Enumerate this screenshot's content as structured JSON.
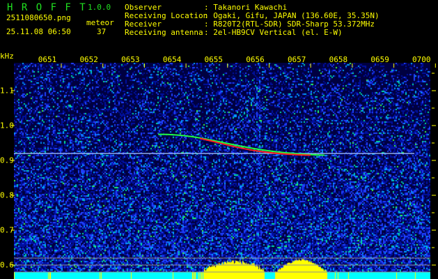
{
  "header": {
    "app_name": "H R O F F T",
    "version": "1.0.0",
    "filename": "2511080650.png",
    "datetime": "25.11.08 06:50",
    "count_label": "meteor",
    "count_value": "37",
    "info": [
      {
        "label": "Observer",
        "value": ": Takanori Kawachi"
      },
      {
        "label": "Receiving Location",
        "value": ": Ogaki, Gifu, JAPAN (136.60E, 35.35N)"
      },
      {
        "label": "Receiver",
        "value": ": R820T2(RTL-SDR) SDR-Sharp 53.372MHz"
      },
      {
        "label": "Receiving antenna",
        "value": ": 2el-HB9CV Vertical (el. E-W)"
      }
    ]
  },
  "chart_data": {
    "type": "heatmap",
    "title": "",
    "xlabel": "",
    "ylabel": "kHz",
    "x_ticks": [
      "0651",
      "0652",
      "0653",
      "0654",
      "0655",
      "0656",
      "0657",
      "0658",
      "0659",
      "0700"
    ],
    "y_ticks": [
      "1.1",
      "1.0",
      "0.9",
      "0.8",
      "0.7",
      "0.6"
    ],
    "ylim": [
      0.58,
      1.2
    ],
    "colors": {
      "background": "#000040",
      "noise": "#2040ff",
      "signal": "#00ffff",
      "meteor": "#ff2020",
      "level": "#ffff00",
      "base": "#00ffff"
    },
    "carrier_khz": 0.92,
    "reference_lines_khz": [
      0.62,
      0.6,
      0.58
    ],
    "meteor_trace": {
      "start": [
        "0654",
        0.975
      ],
      "end": [
        "0658",
        0.915
      ]
    }
  }
}
